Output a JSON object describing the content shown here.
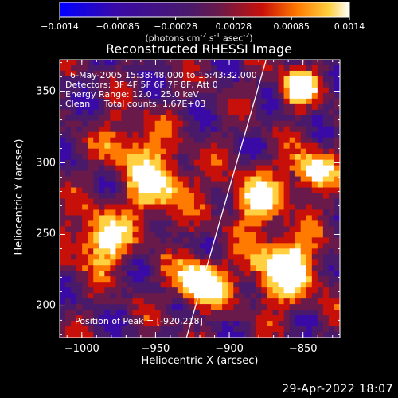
{
  "colorbar": {
    "ticks": [
      "-0.0014",
      "-0.00085",
      "-0.00028",
      "0.00028",
      "0.00085",
      "0.0014"
    ],
    "unit_parts": [
      "(photons cm",
      "-2",
      " s",
      "-1",
      " asec",
      "-2",
      ")"
    ],
    "colors": [
      "#0000ff",
      "#3a0aa6",
      "#4a1a6a",
      "#6a1a4a",
      "#c8100a",
      "#ff7a00",
      "#ffd040",
      "#ffffff"
    ]
  },
  "chart_data": {
    "type": "heatmap",
    "title": "Reconstructed RHESSI Image",
    "xlabel": "Heliocentric X (arcsec)",
    "ylabel": "Heliocentric Y (arcsec)",
    "xlim": [
      -1015,
      -825
    ],
    "ylim": [
      178,
      372
    ],
    "xticks": [
      -1000,
      -950,
      -900,
      -850
    ],
    "xtick_labels": [
      "−1000",
      "−950",
      "−900",
      "−850"
    ],
    "yticks": [
      200,
      250,
      300,
      350
    ],
    "ytick_labels": [
      "200",
      "250",
      "300",
      "350"
    ],
    "limb_line": [
      [
        -929,
        178
      ],
      [
        -875,
        372
      ]
    ],
    "peak": [
      -920,
      218
    ],
    "annotations": [
      "6-May-2005 15:38:48.000 to 15:43:32.000",
      "Detectors: 3F 4F 5F 6F 7F 8F, Att 0",
      "Energy Range: 12.0 - 25.0 keV",
      "Clean     Total counts: 1.67E+03"
    ],
    "peak_label": "Position of Peak = [-920,218]"
  },
  "timestamp": "29-Apr-2022 18:07"
}
